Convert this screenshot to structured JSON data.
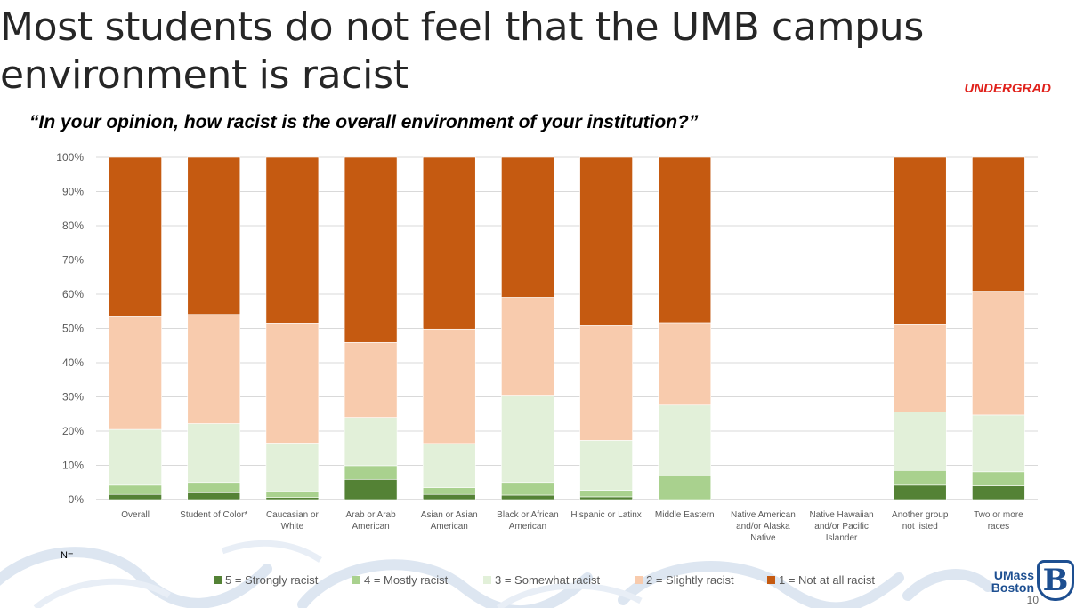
{
  "slide": {
    "title": "Most students do not feel that the UMB campus environment is racist",
    "tag": "UNDERGRAD",
    "question": "“In your opinion, how racist is the overall environment of your institution?”",
    "n_label": "N=",
    "page_number": "10",
    "logo": {
      "line1": "UMass",
      "line2": "Boston",
      "mark": "B"
    }
  },
  "chart_data": {
    "type": "bar",
    "stacked": true,
    "ylim": [
      0,
      100
    ],
    "y_ticks": [
      "0%",
      "10%",
      "20%",
      "30%",
      "40%",
      "50%",
      "60%",
      "70%",
      "80%",
      "90%",
      "100%"
    ],
    "grid": true,
    "legend_position": "bottom",
    "categories": [
      [
        "Overall"
      ],
      [
        "Student of Color*"
      ],
      [
        "Caucasian or",
        "White"
      ],
      [
        "Arab or Arab",
        "American"
      ],
      [
        "Asian or Asian",
        "American"
      ],
      [
        "Black or African",
        "American"
      ],
      [
        "Hispanic or Latinx"
      ],
      [
        "Middle Eastern"
      ],
      [
        "Native American",
        "and/or Alaska",
        "Native"
      ],
      [
        "Native Hawaiian",
        "and/or Pacific",
        "Islander"
      ],
      [
        "Another group",
        "not listed"
      ],
      [
        "Two or more",
        "races"
      ]
    ],
    "series": [
      {
        "name": "5 = Strongly racist",
        "color": "#548235",
        "values": [
          1.5,
          2.0,
          0.6,
          5.9,
          1.5,
          1.3,
          0.8,
          0,
          0,
          0,
          4.2,
          4.0
        ]
      },
      {
        "name": "4 = Mostly racist",
        "color": "#a9d18e",
        "values": [
          2.7,
          3.0,
          1.9,
          4.0,
          2.0,
          3.7,
          1.9,
          6.9,
          0,
          0,
          4.3,
          4.1
        ]
      },
      {
        "name": "3 = Somewhat racist",
        "color": "#e2f0d9",
        "values": [
          16.3,
          17.2,
          14.0,
          14.1,
          12.9,
          25.5,
          14.6,
          20.7,
          0,
          0,
          17.1,
          16.6
        ]
      },
      {
        "name": "2 = Slightly racist",
        "color": "#f8cbad",
        "values": [
          32.9,
          31.9,
          35.1,
          21.9,
          33.4,
          28.6,
          33.5,
          24.1,
          0,
          0,
          25.5,
          36.2
        ]
      },
      {
        "name": "1 = Not at all racist",
        "color": "#c55a11",
        "values": [
          46.6,
          45.9,
          48.4,
          54.1,
          50.2,
          40.9,
          49.2,
          48.3,
          0,
          0,
          48.9,
          39.1
        ]
      }
    ]
  }
}
